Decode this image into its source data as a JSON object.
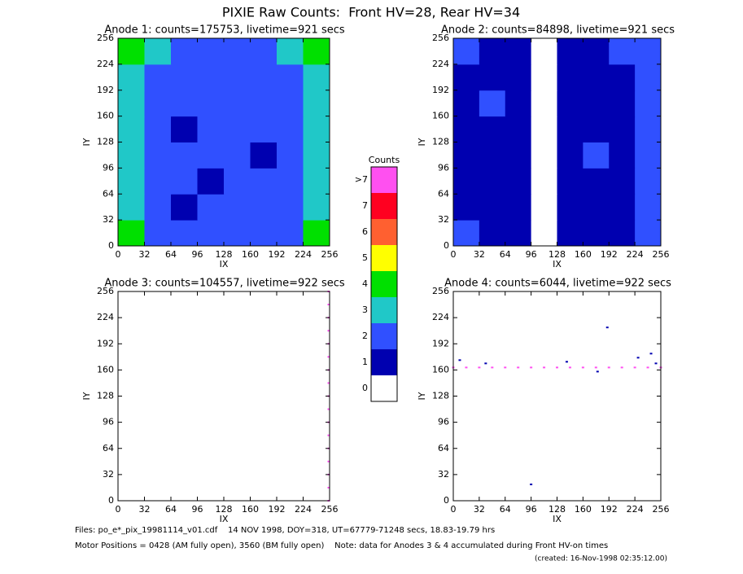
{
  "title": "PIXIE Raw Counts:  Front HV=28, Rear HV=34",
  "chart_data": [
    {
      "type": "heatmap",
      "title": "Anode 1: counts=175753, livetime=921 secs",
      "xlabel": "IX",
      "ylabel": "IY",
      "xlim": [
        0,
        256
      ],
      "ylim": [
        0,
        256
      ],
      "xticks": [
        0,
        32,
        64,
        96,
        128,
        160,
        192,
        224,
        256
      ],
      "yticks": [
        0,
        32,
        64,
        96,
        128,
        160,
        192,
        224,
        256
      ],
      "values": [
        [
          4,
          2,
          2,
          2,
          2,
          2,
          2,
          4
        ],
        [
          3,
          2,
          1,
          2,
          2,
          2,
          2,
          3
        ],
        [
          3,
          2,
          2,
          1,
          2,
          2,
          2,
          3
        ],
        [
          3,
          2,
          2,
          2,
          2,
          1,
          2,
          3
        ],
        [
          3,
          2,
          1,
          2,
          2,
          2,
          2,
          3
        ],
        [
          3,
          2,
          2,
          2,
          2,
          2,
          2,
          3
        ],
        [
          3,
          2,
          2,
          2,
          2,
          2,
          2,
          3
        ],
        [
          4,
          3,
          2,
          2,
          2,
          2,
          3,
          4
        ]
      ]
    },
    {
      "type": "heatmap",
      "title": "Anode 2: counts=84898, livetime=921 secs",
      "xlabel": "IX",
      "ylabel": "IY",
      "xlim": [
        0,
        256
      ],
      "ylim": [
        0,
        256
      ],
      "xticks": [
        0,
        32,
        64,
        96,
        128,
        160,
        192,
        224,
        256
      ],
      "yticks": [
        0,
        32,
        64,
        96,
        128,
        160,
        192,
        224,
        256
      ],
      "values": [
        [
          2,
          1,
          1,
          0,
          1,
          1,
          1,
          2
        ],
        [
          1,
          1,
          1,
          0,
          1,
          1,
          1,
          2
        ],
        [
          1,
          1,
          1,
          0,
          1,
          1,
          1,
          2
        ],
        [
          1,
          1,
          1,
          0,
          1,
          2,
          1,
          2
        ],
        [
          1,
          1,
          1,
          0,
          1,
          1,
          1,
          2
        ],
        [
          1,
          2,
          1,
          0,
          1,
          1,
          1,
          2
        ],
        [
          1,
          1,
          1,
          0,
          1,
          1,
          1,
          2
        ],
        [
          2,
          1,
          1,
          0,
          1,
          1,
          2,
          2
        ]
      ]
    },
    {
      "type": "scatter",
      "title": "Anode 3: counts=104557, livetime=922 secs",
      "xlabel": "IX",
      "ylabel": "IY",
      "xlim": [
        0,
        256
      ],
      "ylim": [
        0,
        256
      ],
      "xticks": [
        0,
        32,
        64,
        96,
        128,
        160,
        192,
        224,
        256
      ],
      "yticks": [
        0,
        32,
        64,
        96,
        128,
        160,
        192,
        224,
        256
      ],
      "series": [
        {
          "color": "#ff50f0",
          "x": [
            255,
            255,
            255,
            255,
            255,
            255,
            255,
            255,
            255,
            255,
            255,
            255,
            255,
            255,
            255,
            255,
            255
          ],
          "values": [
            0,
            16,
            32,
            48,
            64,
            80,
            96,
            112,
            128,
            144,
            160,
            176,
            192,
            208,
            224,
            240,
            256
          ]
        }
      ]
    },
    {
      "type": "scatter",
      "title": "Anode 4: counts=6044, livetime=922 secs",
      "xlabel": "IX",
      "ylabel": "IY",
      "xlim": [
        0,
        256
      ],
      "ylim": [
        0,
        256
      ],
      "xticks": [
        0,
        32,
        64,
        96,
        128,
        160,
        192,
        224,
        256
      ],
      "yticks": [
        0,
        32,
        64,
        96,
        128,
        160,
        192,
        224,
        256
      ],
      "series": [
        {
          "color": "#ff50f0",
          "x": [
            0,
            16,
            32,
            48,
            64,
            80,
            96,
            112,
            128,
            144,
            160,
            176,
            192,
            208,
            224,
            240,
            256
          ],
          "values": [
            163,
            163,
            163,
            163,
            163,
            163,
            163,
            163,
            163,
            163,
            163,
            163,
            163,
            163,
            163,
            163,
            163
          ]
        },
        {
          "color": "#0000b0",
          "x": [
            8,
            40,
            96,
            140,
            178,
            190,
            228,
            244,
            250
          ],
          "values": [
            172,
            168,
            20,
            170,
            158,
            212,
            175,
            180,
            168
          ]
        }
      ]
    }
  ],
  "colorbar": {
    "title": "Counts",
    "levels": [
      {
        "value": 0,
        "label": "0",
        "color": "#ffffff"
      },
      {
        "value": 1,
        "label": "1",
        "color": "#0000b0"
      },
      {
        "value": 2,
        "label": "2",
        "color": "#3050ff"
      },
      {
        "value": 3,
        "label": "3",
        "color": "#20c8c8"
      },
      {
        "value": 4,
        "label": "4",
        "color": "#00e000"
      },
      {
        "value": 5,
        "label": "5",
        "color": "#ffff00"
      },
      {
        "value": 6,
        "label": "6",
        "color": "#ff6030"
      },
      {
        "value": 7,
        "label": "7",
        "color": "#ff0020"
      },
      {
        "value": 8,
        "label": ">7",
        "color": "#ff50f0"
      }
    ]
  },
  "footer": [
    "Files: po_e*_pix_19981114_v01.cdf    14 NOV 1998, DOY=318, UT=67779-71248 secs, 18.83-19.79 hrs",
    "Motor Positions = 0428 (AM fully open), 3560 (BM fully open)    Note: data for Anodes 3 & 4 accumulated during Front HV-on times",
    "(created: 16-Nov-1998 02:35:12.00)"
  ]
}
